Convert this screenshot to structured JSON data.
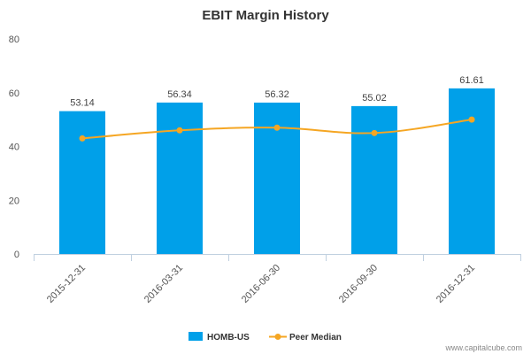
{
  "chart_data": {
    "type": "bar",
    "title": "EBIT Margin History",
    "categories": [
      "2015-12-31",
      "2016-03-31",
      "2016-06-30",
      "2016-09-30",
      "2016-12-31"
    ],
    "series": [
      {
        "name": "HOMB-US",
        "type": "bar",
        "color": "#00a0e9",
        "values": [
          53.14,
          56.34,
          56.32,
          55.02,
          61.61
        ]
      },
      {
        "name": "Peer Median",
        "type": "line",
        "color": "#f5a623",
        "values": [
          43,
          46,
          47,
          45,
          50
        ]
      }
    ],
    "data_labels": [
      "53.14",
      "56.34",
      "56.32",
      "55.02",
      "61.61"
    ],
    "ylim": [
      0,
      80
    ],
    "yticks": [
      0,
      20,
      40,
      60,
      80
    ],
    "grid": false,
    "legend_position": "bottom-center"
  },
  "watermark": "www.capitalcube.com"
}
